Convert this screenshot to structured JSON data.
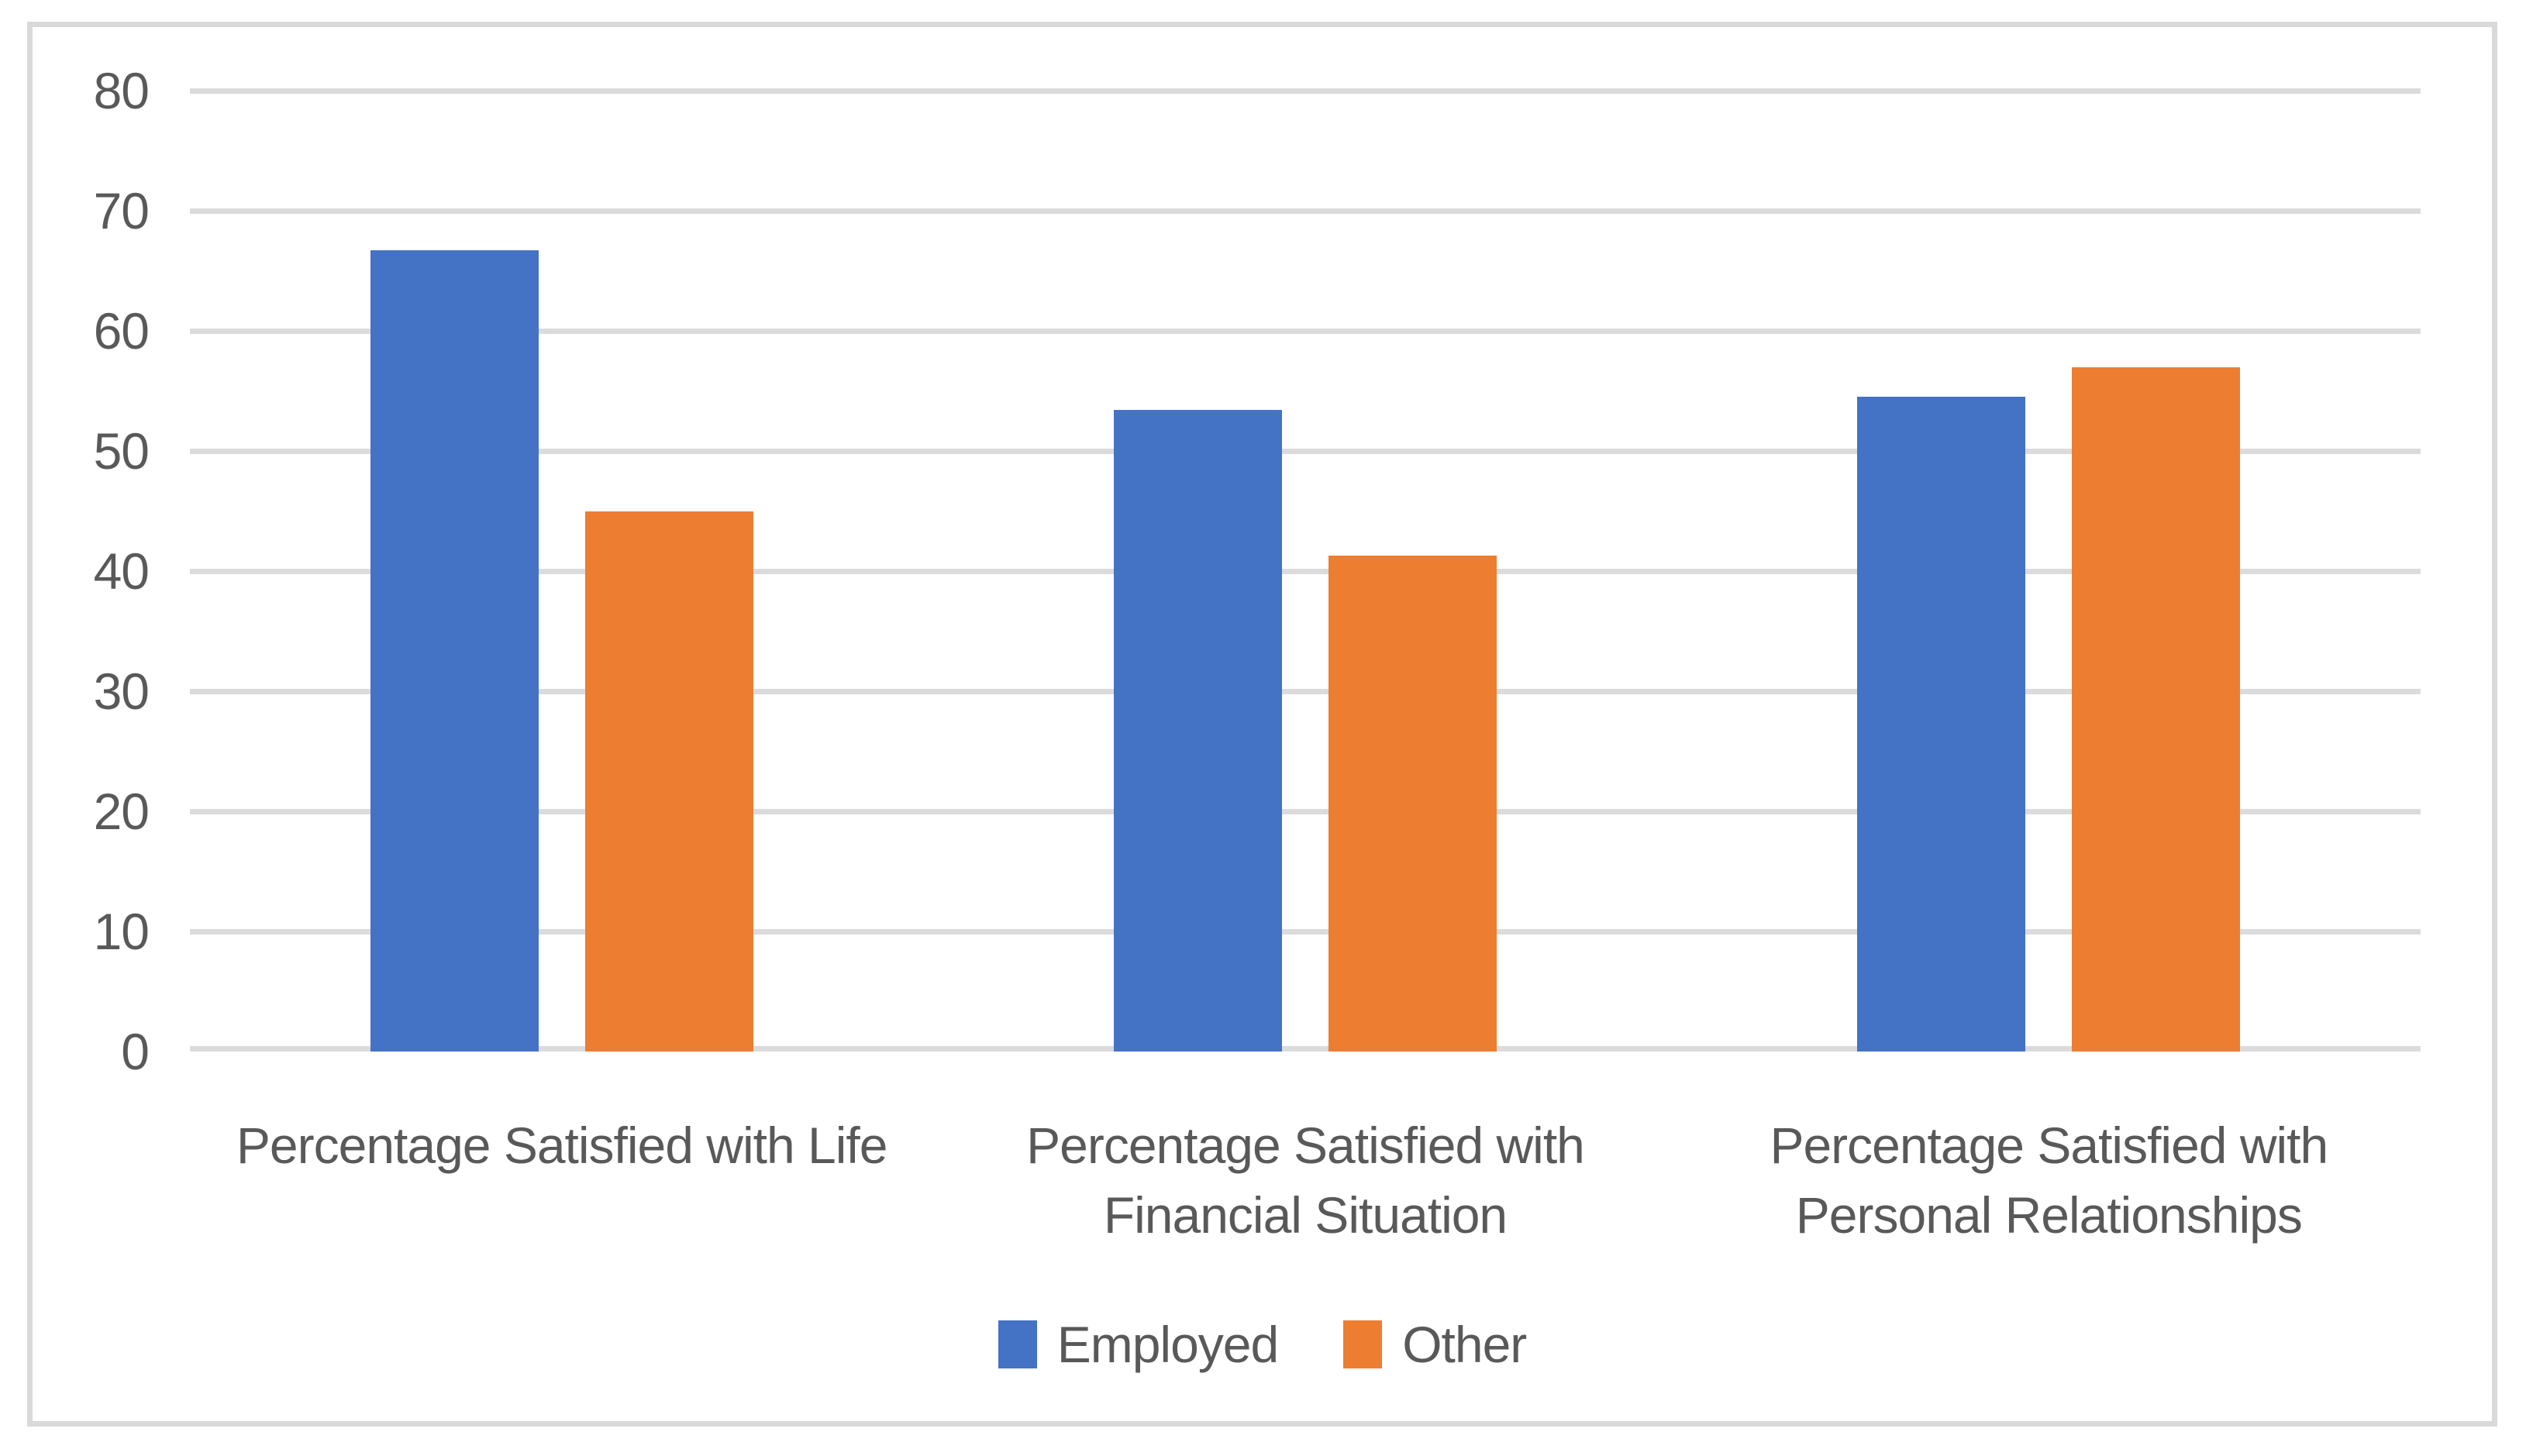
{
  "chart_data": {
    "type": "bar",
    "title": "",
    "categories": [
      "Percentage Satisfied with Life",
      "Percentage Satisfied with Financial Situation",
      "Percentage Satisfied with Personal Relationships"
    ],
    "series": [
      {
        "name": "Employed",
        "color": "#4472C4",
        "values": [
          66.7,
          53.4,
          54.5
        ]
      },
      {
        "name": "Other",
        "color": "#ED7D31",
        "values": [
          45.0,
          41.3,
          57.0
        ]
      }
    ],
    "ylim": [
      0,
      80
    ],
    "ytick_interval": 10,
    "yticks": [
      80,
      70,
      60,
      50,
      40,
      30,
      20,
      10,
      0
    ],
    "grid": true,
    "legend_position": "bottom",
    "colors": {
      "gridline": "#DBDBDB",
      "frame_border": "#D9D9D9",
      "axis_text": "#595959",
      "background": "#FFFFFF"
    }
  }
}
